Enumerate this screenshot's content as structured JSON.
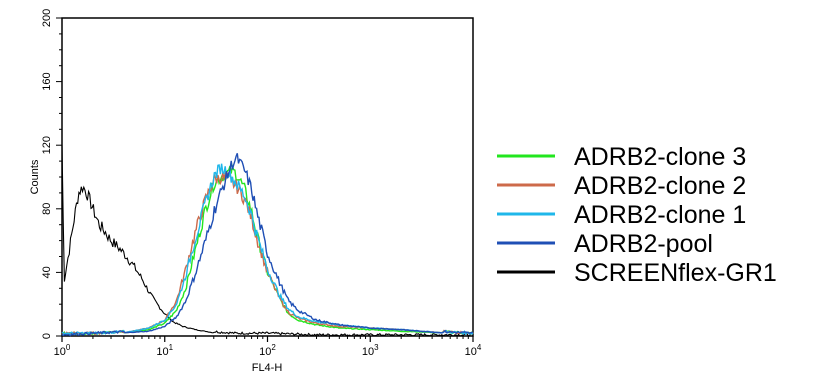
{
  "chart_data": {
    "type": "line",
    "xlabel": "FL4-H",
    "ylabel": "Counts",
    "x_scale": "log",
    "xlim": [
      1,
      10000
    ],
    "ylim": [
      0,
      200
    ],
    "x_ticks": [
      {
        "value": 1,
        "base": "10",
        "exp": "0"
      },
      {
        "value": 10,
        "base": "10",
        "exp": "1"
      },
      {
        "value": 100,
        "base": "10",
        "exp": "2"
      },
      {
        "value": 1000,
        "base": "10",
        "exp": "3"
      },
      {
        "value": 10000,
        "base": "10",
        "exp": "4"
      }
    ],
    "y_ticks": [
      "0",
      "40",
      "80",
      "120",
      "160",
      "200"
    ],
    "grid": false,
    "legend_position": "right",
    "series": [
      {
        "name": "ADRB2-clone 3",
        "color": "#22e61e",
        "x": [
          1,
          2,
          4,
          7,
          10,
          13,
          16,
          20,
          25,
          30,
          35,
          40,
          45,
          50,
          60,
          70,
          80,
          100,
          130,
          160,
          200,
          300,
          500,
          1000,
          2000,
          5000,
          10000
        ],
        "y": [
          1,
          1,
          2,
          4,
          8,
          16,
          30,
          55,
          80,
          96,
          100,
          102,
          104,
          102,
          92,
          78,
          62,
          40,
          24,
          14,
          10,
          7,
          5,
          4,
          3,
          2,
          1
        ]
      },
      {
        "name": "ADRB2-clone 2",
        "color": "#cd6a4a",
        "x": [
          1,
          2,
          4,
          7,
          10,
          13,
          16,
          20,
          25,
          30,
          35,
          40,
          45,
          50,
          60,
          70,
          80,
          100,
          130,
          160,
          200,
          300,
          500,
          1000,
          2000,
          5000,
          10000
        ],
        "y": [
          1,
          1,
          2,
          5,
          10,
          22,
          42,
          66,
          86,
          98,
          100,
          99,
          97,
          94,
          86,
          74,
          60,
          40,
          24,
          15,
          11,
          8,
          6,
          5,
          4,
          2,
          1
        ]
      },
      {
        "name": "ADRB2-clone 1",
        "color": "#1fb7ea",
        "x": [
          1,
          2,
          4,
          7,
          10,
          13,
          16,
          20,
          25,
          30,
          35,
          40,
          45,
          50,
          60,
          70,
          80,
          100,
          130,
          160,
          200,
          300,
          500,
          1000,
          2000,
          5000,
          10000
        ],
        "y": [
          1,
          1,
          2,
          5,
          10,
          20,
          38,
          62,
          84,
          100,
          106,
          104,
          100,
          96,
          88,
          76,
          62,
          42,
          26,
          17,
          12,
          9,
          7,
          5,
          4,
          2,
          1
        ]
      },
      {
        "name": "ADRB2-pool",
        "color": "#1f4fb5",
        "x": [
          1,
          2,
          4,
          7,
          10,
          13,
          16,
          20,
          25,
          30,
          35,
          40,
          45,
          50,
          60,
          70,
          80,
          100,
          130,
          160,
          200,
          300,
          500,
          1000,
          2000,
          5000,
          10000
        ],
        "y": [
          0,
          1,
          2,
          3,
          6,
          12,
          22,
          40,
          60,
          78,
          90,
          100,
          108,
          112,
          104,
          92,
          76,
          52,
          34,
          22,
          16,
          10,
          7,
          5,
          4,
          2,
          1
        ]
      },
      {
        "name": "SCREENflex-GR1",
        "color": "#000000",
        "x": [
          1,
          1.05,
          1.15,
          1.3,
          1.45,
          1.6,
          1.8,
          2,
          2.3,
          2.6,
          3,
          3.5,
          4,
          5,
          6,
          7,
          8,
          10,
          12,
          15,
          20,
          30,
          50,
          100,
          300,
          1000,
          10000
        ],
        "y": [
          120,
          35,
          50,
          72,
          90,
          94,
          88,
          80,
          70,
          66,
          60,
          56,
          52,
          44,
          36,
          28,
          22,
          14,
          9,
          6,
          4,
          2,
          1,
          1,
          0,
          0,
          0
        ]
      }
    ]
  }
}
